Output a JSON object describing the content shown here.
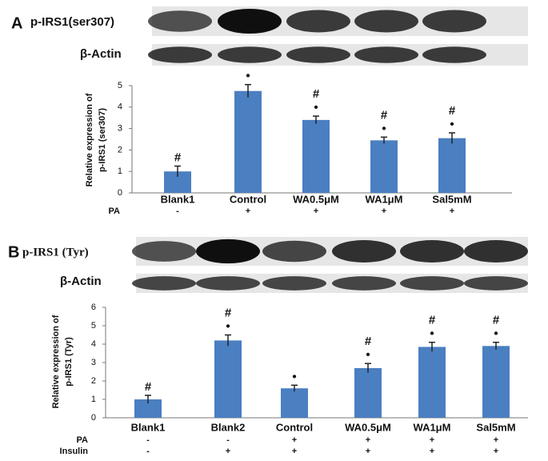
{
  "chart_data": [
    {
      "type": "bar",
      "panel": "A",
      "blots": [
        "p-IRS1(ser307)",
        "β-Actin"
      ],
      "ylabel": [
        "Relative expression of",
        "p-IRS1 (ser307)"
      ],
      "categories": [
        "Blank1",
        "Control",
        "WA0.5μM",
        "WA1μM",
        "Sal5mM"
      ],
      "values": [
        1.0,
        4.75,
        3.4,
        2.45,
        2.55
      ],
      "errors": [
        0.25,
        0.3,
        0.18,
        0.15,
        0.25
      ],
      "significance": [
        [
          "#"
        ],
        [
          "•"
        ],
        [
          "#",
          "•"
        ],
        [
          "#",
          "•"
        ],
        [
          "#",
          "•"
        ]
      ],
      "treatments": [
        {
          "name": "PA",
          "signs": [
            "-",
            "+",
            "+",
            "+",
            "+"
          ]
        }
      ],
      "color": "#4a7fc1",
      "ylim": [
        0,
        5
      ],
      "yticks": [
        0,
        1,
        2,
        3,
        4,
        5
      ]
    },
    {
      "type": "bar",
      "panel": "B",
      "blots": [
        "p-IRS1 (Tyr)",
        "β-Actin"
      ],
      "ylabel": [
        "Relative expression of",
        "p-IRS1 (Tyr)"
      ],
      "categories": [
        "Blank1",
        "Blank2",
        "Control",
        "WA0.5μM",
        "WA1μM",
        "Sal5mM"
      ],
      "values": [
        1.0,
        4.2,
        1.6,
        2.7,
        3.85,
        3.9
      ],
      "errors": [
        0.22,
        0.3,
        0.17,
        0.25,
        0.25,
        0.2
      ],
      "significance": [
        [
          "#"
        ],
        [
          "#",
          "•"
        ],
        [
          "•"
        ],
        [
          "#",
          "•"
        ],
        [
          "#",
          "•"
        ],
        [
          "#",
          "•"
        ]
      ],
      "treatments": [
        {
          "name": "PA",
          "signs": [
            "-",
            "-",
            "+",
            "+",
            "+",
            "+"
          ]
        },
        {
          "name": "Insulin",
          "signs": [
            "-",
            "+",
            "+",
            "+",
            "+",
            "+"
          ]
        }
      ],
      "color": "#4a7fc1",
      "ylim": [
        0,
        6
      ],
      "yticks": [
        0,
        1,
        2,
        3,
        4,
        5,
        6
      ]
    }
  ]
}
